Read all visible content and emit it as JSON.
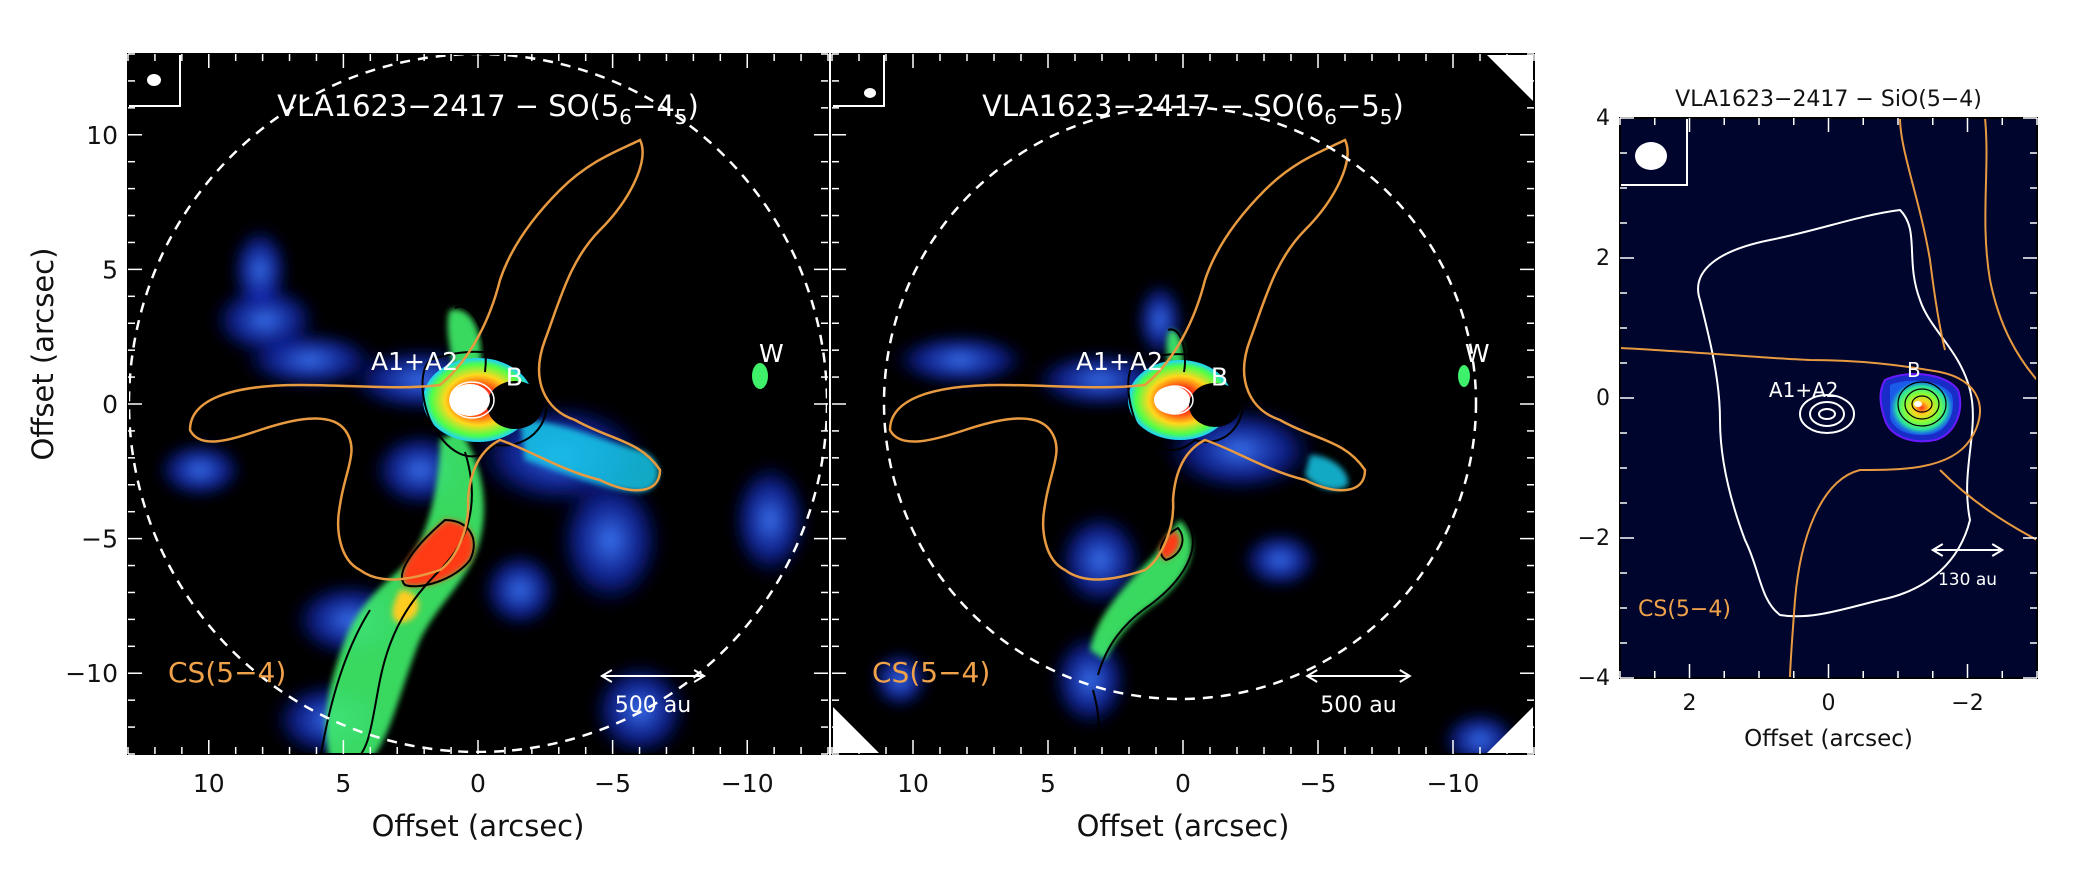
{
  "chart_data": [
    {
      "type": "heatmap",
      "title": "VLA1623−2417 − SO(5",
      "title_sub1": "6",
      "title_mid": "−4",
      "title_sub2": "5",
      "title_end": ")",
      "xlabel": "Offset (arcsec)",
      "ylabel": "Offset (arcsec)",
      "xlim": [
        13,
        -13
      ],
      "ylim": [
        -13,
        13
      ],
      "xticks": [
        10,
        5,
        0,
        -5,
        -10
      ],
      "xtick_labels": [
        "10",
        "5",
        "0",
        "−5",
        "−10"
      ],
      "yticks": [
        10,
        5,
        0,
        -5,
        -10
      ],
      "ytick_labels": [
        "10",
        "5",
        "0",
        "−5",
        "−10"
      ],
      "field_radius": 13,
      "sources": [
        {
          "label": "A1+A2",
          "x": 0,
          "y": 0
        },
        {
          "label": "B",
          "x": -1.2,
          "y": -0.2
        },
        {
          "label": "W",
          "x": -10.6,
          "y": 0.9
        }
      ],
      "contour_label": "CS(5−4)",
      "scale_bar_label": "500 au",
      "scale_bar_length": 3.8,
      "colormap": "jet"
    },
    {
      "type": "heatmap",
      "title": "VLA1623−2417 − SO(6",
      "title_sub1": "6",
      "title_mid": "−5",
      "title_sub2": "5",
      "title_end": ")",
      "xlabel": "Offset (arcsec)",
      "ylabel": "",
      "xlim": [
        13,
        -13
      ],
      "ylim": [
        -13,
        13
      ],
      "xticks": [
        10,
        5,
        0,
        -5,
        -10
      ],
      "xtick_labels": [
        "10",
        "5",
        "0",
        "−5",
        "−10"
      ],
      "yticks": [
        10,
        5,
        0,
        -5,
        -10
      ],
      "field_radius": 11,
      "sources": [
        {
          "label": "A1+A2",
          "x": 0,
          "y": 0
        },
        {
          "label": "B",
          "x": -1.2,
          "y": -0.2
        },
        {
          "label": "W",
          "x": -10.6,
          "y": 0.9
        }
      ],
      "contour_label": "CS(5−4)",
      "scale_bar_label": "500 au",
      "scale_bar_length": 3.8,
      "colormap": "jet"
    },
    {
      "type": "heatmap",
      "title": "VLA1623−2417 − SiO(5−4)",
      "xlabel": "Offset (arcsec)",
      "ylabel": "",
      "xlim": [
        3,
        -3
      ],
      "ylim": [
        -4,
        4
      ],
      "xticks": [
        2,
        0,
        -2
      ],
      "xtick_labels": [
        "2",
        "0",
        "−2"
      ],
      "yticks": [
        4,
        2,
        0,
        -2,
        -4
      ],
      "ytick_labels": [
        "4",
        "2",
        "0",
        "−2",
        "−4"
      ],
      "sources": [
        {
          "label": "A1+A2",
          "x": 0,
          "y": -0.3
        },
        {
          "label": "B",
          "x": -1.2,
          "y": -0.1
        }
      ],
      "contour_label": "CS(5−4)",
      "scale_bar_label": "130 au",
      "scale_bar_length": 1.0,
      "colormap": "jet"
    }
  ],
  "colors": {
    "background": "#000000",
    "panel3_background": "#00052e",
    "cs_contour": "#e89a40",
    "contour_black": "#000000",
    "contour_white": "#ffffff",
    "dust_contour": "#ffffff"
  }
}
